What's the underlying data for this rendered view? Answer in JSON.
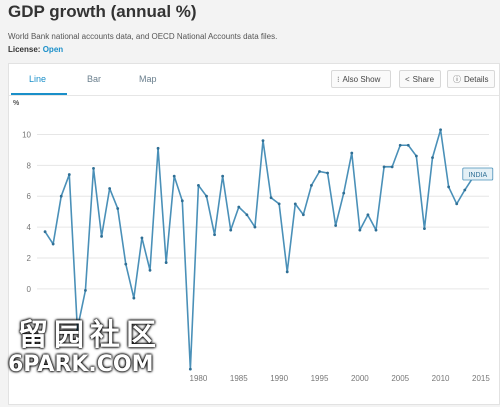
{
  "header": {
    "title": "GDP growth (annual %)",
    "source": "World Bank national accounts data, and OECD National Accounts data files.",
    "license_label": "License:",
    "license_value": "Open"
  },
  "tabs": [
    {
      "label": "Line",
      "active": true
    },
    {
      "label": "Bar",
      "active": false
    },
    {
      "label": "Map",
      "active": false
    }
  ],
  "toolbar": {
    "also_show": "Also Show",
    "share": "Share",
    "details": "Details"
  },
  "watermark": {
    "logo": "留园社区",
    "site": "6PARK.COM"
  },
  "colors": {
    "line": "#4a90b8",
    "marker": "#2f6f95",
    "accent": "#1a8fc9",
    "grid": "#e6e6e6"
  },
  "chart_data": {
    "type": "line",
    "ylabel": "%",
    "ylim": [
      -5,
      11
    ],
    "yticks": [
      0,
      2,
      4,
      6,
      8,
      10
    ],
    "xlim": [
      1960,
      2016
    ],
    "xticks": [
      1980,
      1985,
      1990,
      1995,
      2000,
      2005,
      2010,
      2015
    ],
    "grid": true,
    "series": [
      {
        "name": "INDIA",
        "x": [
          1961,
          1962,
          1963,
          1964,
          1965,
          1966,
          1967,
          1968,
          1969,
          1970,
          1971,
          1972,
          1973,
          1974,
          1975,
          1976,
          1977,
          1978,
          1979,
          1980,
          1981,
          1982,
          1983,
          1984,
          1985,
          1986,
          1987,
          1988,
          1989,
          1990,
          1991,
          1992,
          1993,
          1994,
          1995,
          1996,
          1997,
          1998,
          1999,
          2000,
          2001,
          2002,
          2003,
          2004,
          2005,
          2006,
          2007,
          2008,
          2009,
          2010,
          2011,
          2012,
          2013,
          2014,
          2015
        ],
        "y": [
          3.7,
          2.9,
          6.0,
          7.4,
          -2.6,
          -0.1,
          7.8,
          3.4,
          6.5,
          5.2,
          1.6,
          -0.6,
          3.3,
          1.2,
          9.1,
          1.7,
          7.3,
          5.7,
          -5.2,
          6.7,
          6.0,
          3.5,
          7.3,
          3.8,
          5.3,
          4.8,
          4.0,
          9.6,
          5.9,
          5.5,
          1.1,
          5.5,
          4.8,
          6.7,
          7.6,
          7.5,
          4.1,
          6.2,
          8.8,
          3.8,
          4.8,
          3.8,
          7.9,
          7.9,
          9.3,
          9.3,
          8.6,
          3.9,
          8.5,
          10.3,
          6.6,
          5.5,
          6.4,
          7.2,
          7.6
        ]
      }
    ]
  }
}
